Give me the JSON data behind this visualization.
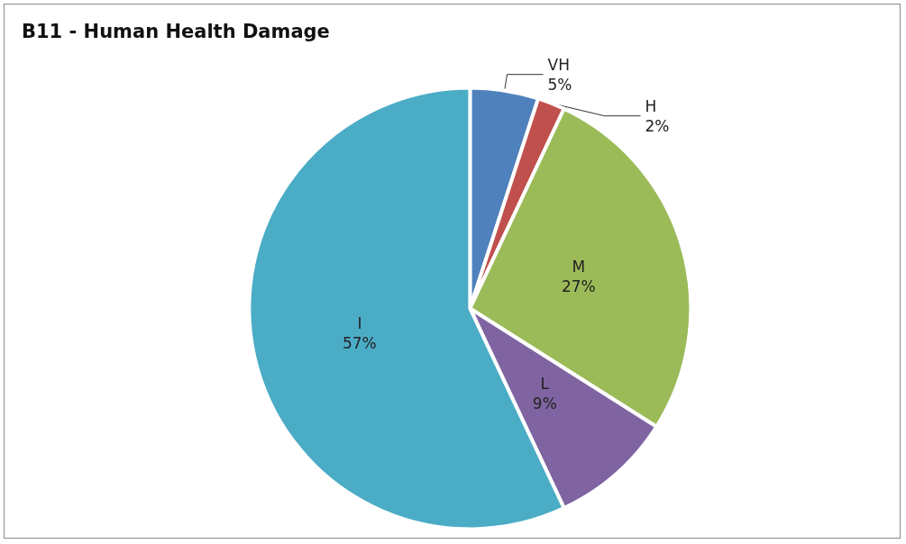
{
  "chart_data": {
    "type": "pie",
    "title": "B11 - Human Health Damage",
    "categories": [
      "VH",
      "H",
      "M",
      "L",
      "I"
    ],
    "values": [
      5,
      2,
      27,
      9,
      57
    ],
    "colors": [
      "#4f81bd",
      "#c0504d",
      "#9bbb59",
      "#8064a2",
      "#4bacc6"
    ],
    "value_labels": [
      "5%",
      "2%",
      "27%",
      "9%",
      "57%"
    ]
  }
}
